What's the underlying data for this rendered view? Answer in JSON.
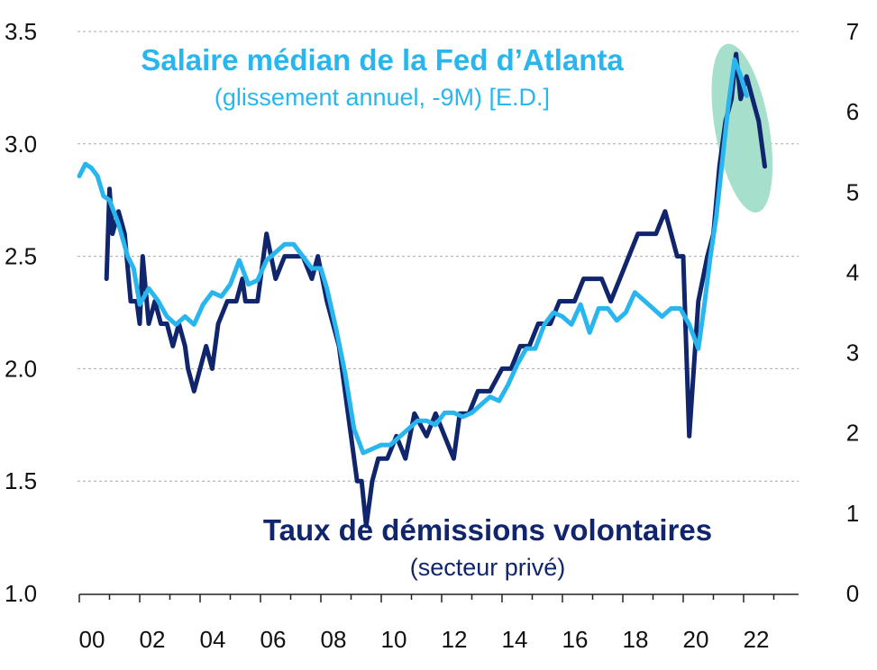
{
  "chart_data": {
    "type": "line",
    "x_tick_labels": [
      "00",
      "02",
      "04",
      "06",
      "08",
      "10",
      "12",
      "14",
      "16",
      "18",
      "20",
      "22"
    ],
    "left_axis": {
      "ylim": [
        1.0,
        3.5
      ],
      "tick_labels": [
        "1.0",
        "1.5",
        "2.0",
        "2.5",
        "3.0",
        "3.5"
      ]
    },
    "right_axis": {
      "ylim": [
        0,
        7
      ],
      "tick_labels": [
        "0",
        "1",
        "2",
        "3",
        "4",
        "5",
        "6",
        "7"
      ]
    },
    "grid": "horizontal dashed",
    "series": [
      {
        "name": "Taux de démissions volontaires",
        "subtitle": "(secteur privé)",
        "axis": "left",
        "color": "#10256b",
        "x": [
          2000.9,
          2001.0,
          2001.1,
          2001.3,
          2001.5,
          2001.7,
          2001.9,
          2002.0,
          2002.1,
          2002.3,
          2002.5,
          2002.7,
          2002.9,
          2003.1,
          2003.3,
          2003.5,
          2003.6,
          2003.8,
          2004.0,
          2004.2,
          2004.4,
          2004.6,
          2004.9,
          2005.2,
          2005.4,
          2005.5,
          2005.7,
          2005.9,
          2006.2,
          2006.5,
          2006.8,
          2007.1,
          2007.4,
          2007.7,
          2007.9,
          2008.2,
          2008.4,
          2008.6,
          2008.8,
          2009.0,
          2009.2,
          2009.35,
          2009.5,
          2009.7,
          2009.9,
          2010.2,
          2010.5,
          2010.8,
          2011.1,
          2011.5,
          2011.8,
          2012.1,
          2012.4,
          2012.6,
          2012.9,
          2013.2,
          2013.6,
          2014.0,
          2014.3,
          2014.6,
          2014.9,
          2015.2,
          2015.6,
          2015.9,
          2016.1,
          2016.4,
          2016.7,
          2017.0,
          2017.3,
          2017.6,
          2017.9,
          2018.2,
          2018.5,
          2018.8,
          2019.1,
          2019.4,
          2019.6,
          2019.8,
          2020.0,
          2020.1,
          2020.2,
          2020.35,
          2020.5,
          2020.8,
          2021.0,
          2021.2,
          2021.4,
          2021.6,
          2021.75,
          2021.9,
          2022.1,
          2022.3,
          2022.5,
          2022.7
        ],
        "values": [
          2.4,
          2.8,
          2.6,
          2.7,
          2.6,
          2.3,
          2.3,
          2.2,
          2.5,
          2.2,
          2.3,
          2.2,
          2.2,
          2.1,
          2.2,
          2.1,
          2.0,
          1.9,
          2.0,
          2.1,
          2.0,
          2.2,
          2.3,
          2.3,
          2.4,
          2.3,
          2.3,
          2.3,
          2.6,
          2.4,
          2.5,
          2.5,
          2.5,
          2.4,
          2.5,
          2.3,
          2.2,
          2.1,
          1.9,
          1.7,
          1.5,
          1.5,
          1.3,
          1.5,
          1.6,
          1.6,
          1.7,
          1.6,
          1.8,
          1.7,
          1.8,
          1.7,
          1.6,
          1.8,
          1.8,
          1.9,
          1.9,
          2.0,
          2.0,
          2.1,
          2.1,
          2.2,
          2.2,
          2.3,
          2.3,
          2.3,
          2.4,
          2.4,
          2.4,
          2.3,
          2.4,
          2.5,
          2.6,
          2.6,
          2.6,
          2.7,
          2.6,
          2.5,
          2.5,
          2.1,
          1.7,
          2.0,
          2.3,
          2.5,
          2.6,
          2.9,
          3.1,
          3.2,
          3.4,
          3.2,
          3.3,
          3.2,
          3.1,
          2.9
        ]
      },
      {
        "name": "Salaire médian de la Fed d’Atlanta",
        "subtitle": "(glissement annuel, -9M) [E.D.]",
        "axis": "right",
        "color": "#29b6ee",
        "x": [
          2000.0,
          2000.2,
          2000.4,
          2000.6,
          2000.8,
          2001.0,
          2001.3,
          2001.6,
          2001.8,
          2002.0,
          2002.3,
          2002.6,
          2002.9,
          2003.2,
          2003.5,
          2003.8,
          2004.1,
          2004.4,
          2004.7,
          2005.0,
          2005.3,
          2005.6,
          2005.9,
          2006.2,
          2006.5,
          2006.8,
          2007.1,
          2007.4,
          2007.7,
          2008.0,
          2008.2,
          2008.5,
          2008.8,
          2009.1,
          2009.4,
          2009.7,
          2010.0,
          2010.3,
          2010.6,
          2010.9,
          2011.2,
          2011.5,
          2011.8,
          2012.1,
          2012.4,
          2012.7,
          2013.0,
          2013.3,
          2013.6,
          2013.9,
          2014.2,
          2014.5,
          2014.8,
          2015.1,
          2015.4,
          2015.7,
          2016.0,
          2016.3,
          2016.6,
          2016.9,
          2017.2,
          2017.5,
          2017.8,
          2018.1,
          2018.4,
          2018.7,
          2019.0,
          2019.3,
          2019.6,
          2019.9,
          2020.2,
          2020.5,
          2020.7,
          2020.9,
          2021.1,
          2021.3,
          2021.5,
          2021.7,
          2021.9,
          2022.1
        ],
        "values": [
          5.2,
          5.35,
          5.3,
          5.2,
          4.95,
          4.9,
          4.6,
          4.2,
          4.05,
          3.6,
          3.8,
          3.65,
          3.45,
          3.35,
          3.45,
          3.35,
          3.6,
          3.75,
          3.7,
          3.85,
          4.15,
          3.85,
          3.9,
          4.15,
          4.25,
          4.35,
          4.35,
          4.2,
          4.05,
          4.05,
          3.8,
          3.3,
          2.75,
          2.05,
          1.75,
          1.8,
          1.85,
          1.85,
          1.95,
          2.05,
          2.15,
          2.15,
          2.1,
          2.25,
          2.25,
          2.2,
          2.25,
          2.35,
          2.45,
          2.4,
          2.6,
          2.85,
          3.05,
          3.05,
          3.35,
          3.5,
          3.45,
          3.35,
          3.6,
          3.25,
          3.55,
          3.55,
          3.4,
          3.5,
          3.75,
          3.65,
          3.55,
          3.45,
          3.55,
          3.55,
          3.35,
          3.05,
          3.6,
          4.2,
          4.7,
          5.4,
          6.1,
          6.65,
          6.45,
          6.2
        ]
      }
    ],
    "highlight": {
      "shape": "ellipse",
      "color": "#a7dfcd"
    }
  }
}
